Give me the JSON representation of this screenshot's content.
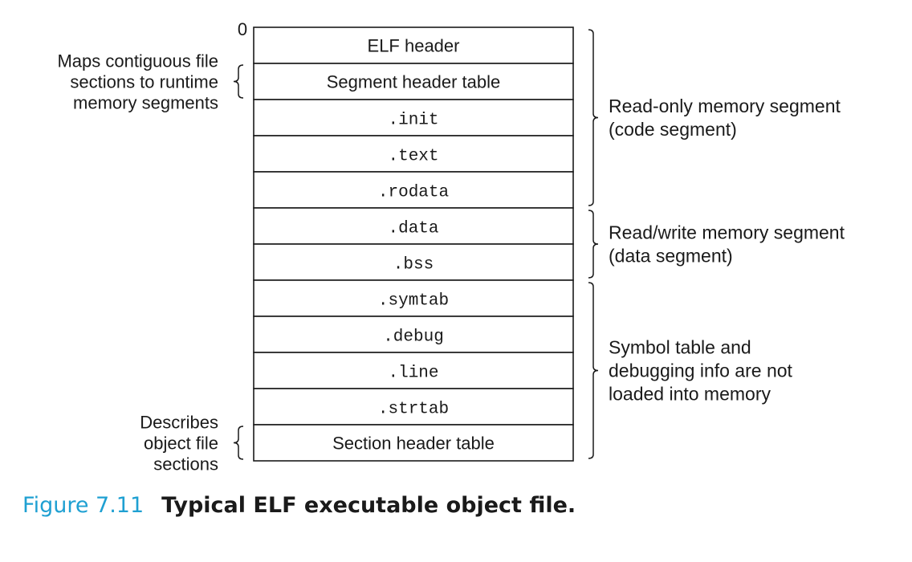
{
  "diagram": {
    "origin_label": "0",
    "sections": [
      {
        "label": "ELF header",
        "font": "sans"
      },
      {
        "label": "Segment header table",
        "font": "sans"
      },
      {
        "label": ".init",
        "font": "mono"
      },
      {
        "label": ".text",
        "font": "mono"
      },
      {
        "label": ".rodata",
        "font": "mono"
      },
      {
        "label": ".data",
        "font": "mono"
      },
      {
        "label": ".bss",
        "font": "mono"
      },
      {
        "label": ".symtab",
        "font": "mono"
      },
      {
        "label": ".debug",
        "font": "mono"
      },
      {
        "label": ".line",
        "font": "mono"
      },
      {
        "label": ".strtab",
        "font": "mono"
      },
      {
        "label": "Section header table",
        "font": "sans"
      }
    ],
    "left_annotations": [
      {
        "lines": [
          "Maps contiguous file",
          "sections to runtime",
          "memory segments"
        ],
        "spans_sections": [
          1,
          1
        ]
      },
      {
        "lines": [
          "Describes",
          "object file",
          "sections"
        ],
        "spans_sections": [
          11,
          11
        ]
      }
    ],
    "right_annotations": [
      {
        "lines": [
          "Read-only memory segment",
          "(code segment)"
        ],
        "spans_sections": [
          0,
          4
        ]
      },
      {
        "lines": [
          "Read/write memory segment",
          "(data segment)"
        ],
        "spans_sections": [
          5,
          6
        ]
      },
      {
        "lines": [
          "Symbol table and",
          "debugging info are not",
          "loaded into memory"
        ],
        "spans_sections": [
          7,
          11
        ]
      }
    ]
  },
  "caption": {
    "number": "Figure 7.11",
    "title": "Typical ELF executable object file."
  }
}
